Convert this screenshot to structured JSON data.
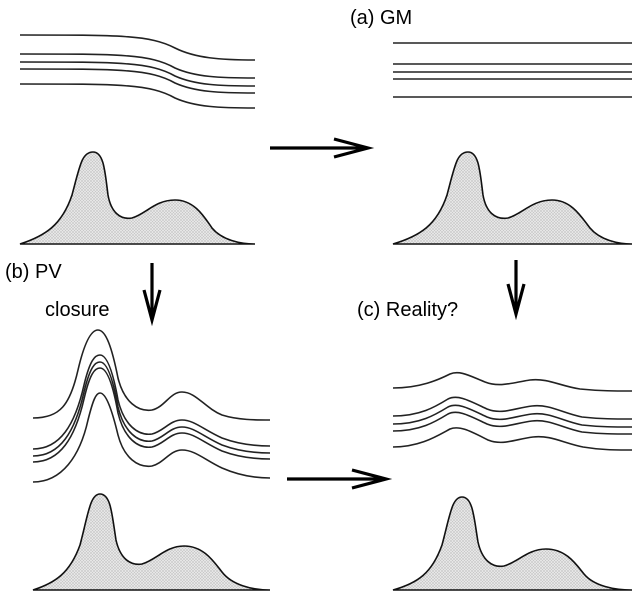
{
  "labels": {
    "gm": "(a) GM",
    "pv_line1": "(b) PV",
    "pv_line2": "closure",
    "reality": "(c) Reality?"
  },
  "colors": {
    "line": "#222222",
    "topography_fill": "#dcdcdc",
    "topography_stroke": "#111111",
    "arrow": "#000000"
  },
  "panels": [
    "initial",
    "gm",
    "pv-closure",
    "reality"
  ],
  "arrows": [
    "right-top",
    "down-left",
    "down-right",
    "right-bottom"
  ]
}
